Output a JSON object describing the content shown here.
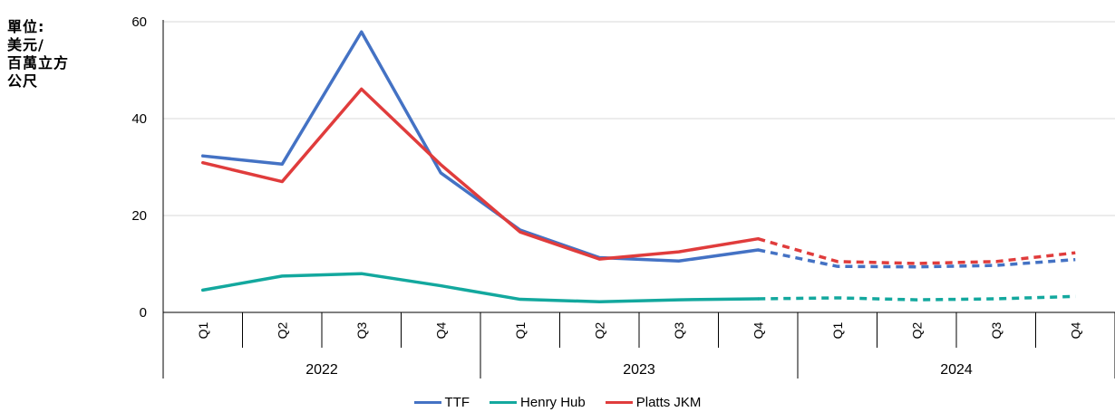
{
  "unit_label": [
    "單位:",
    "美元/",
    "百萬立方",
    "公尺"
  ],
  "chart_data": {
    "type": "line",
    "x": [
      "Q1",
      "Q2",
      "Q3",
      "Q4",
      "Q1",
      "Q2",
      "Q3",
      "Q4",
      "Q1",
      "Q2",
      "Q3",
      "Q4"
    ],
    "years": [
      "2022",
      "2023",
      "2024"
    ],
    "ylim": [
      0,
      60
    ],
    "yticks": [
      "0",
      "20",
      "40",
      "60"
    ],
    "forecast_start_index": 7,
    "grid": "horizontal",
    "legend_position": "bottom",
    "series": [
      {
        "name": "TTF",
        "color": "#4472C4",
        "values": [
          32.3,
          30.6,
          57.9,
          28.8,
          17.0,
          11.3,
          10.6,
          12.9,
          9.5,
          9.4,
          9.7,
          10.9
        ]
      },
      {
        "name": "Henry Hub",
        "color": "#13A89E",
        "values": [
          4.6,
          7.5,
          8.0,
          5.5,
          2.7,
          2.2,
          2.6,
          2.8,
          3.0,
          2.6,
          2.8,
          3.3
        ]
      },
      {
        "name": "Platts JKM",
        "color": "#E03C3C",
        "values": [
          30.9,
          27.0,
          46.1,
          30.5,
          16.6,
          11.0,
          12.5,
          15.2,
          10.5,
          10.1,
          10.5,
          12.3
        ]
      }
    ]
  }
}
